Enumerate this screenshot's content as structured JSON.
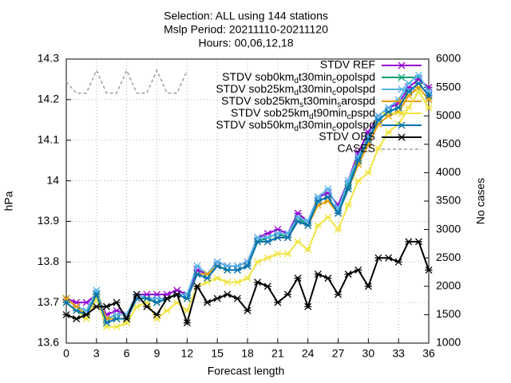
{
  "chart_data": {
    "type": "line",
    "title": [
      "Selection: ALL using    144 stations",
      "Mslp   Period: 20211110-20211120",
      "Hours: 00,06,12,18"
    ],
    "x_label": "Forecast length",
    "y_label": "hPa",
    "y2_label": "No cases",
    "x": [
      0,
      1,
      2,
      3,
      4,
      5,
      6,
      7,
      8,
      9,
      10,
      11,
      12,
      13,
      14,
      15,
      16,
      17,
      18,
      19,
      20,
      21,
      22,
      23,
      24,
      25,
      26,
      27,
      28,
      29,
      30,
      31,
      32,
      33,
      34,
      35,
      36
    ],
    "xlim": [
      0,
      36
    ],
    "xticks": [
      0,
      3,
      6,
      9,
      12,
      15,
      18,
      21,
      24,
      27,
      30,
      33,
      36
    ],
    "ylim": [
      13.6,
      14.3
    ],
    "yticks": [
      13.6,
      13.7,
      13.8,
      13.9,
      14,
      14.1,
      14.2,
      14.3
    ],
    "y2lim": [
      1000,
      6000
    ],
    "y2ticks": [
      1000,
      1500,
      2000,
      2500,
      3000,
      3500,
      4000,
      4500,
      5000,
      5500,
      6000
    ],
    "grid": true,
    "legend": "top-right",
    "series": [
      {
        "name": "STDV REF",
        "color": "#9400d3",
        "values": [
          13.71,
          13.7,
          13.7,
          13.72,
          13.67,
          13.68,
          13.67,
          13.72,
          13.72,
          13.72,
          13.72,
          13.73,
          13.72,
          13.78,
          13.77,
          13.8,
          13.79,
          13.79,
          13.8,
          13.86,
          13.87,
          13.88,
          13.87,
          13.92,
          13.9,
          13.96,
          13.97,
          13.94,
          14.0,
          14.07,
          14.12,
          14.16,
          14.18,
          14.19,
          14.23,
          14.25,
          14.23
        ]
      },
      {
        "name": "STDV sob0km_dt30min_copolspd",
        "color": "#009e73",
        "values": [
          13.7,
          13.68,
          13.67,
          13.72,
          13.66,
          13.66,
          13.66,
          13.71,
          13.71,
          13.7,
          13.71,
          13.72,
          13.71,
          13.77,
          13.77,
          13.79,
          13.78,
          13.78,
          13.79,
          13.85,
          13.86,
          13.87,
          13.86,
          13.91,
          13.89,
          13.95,
          13.96,
          13.92,
          13.99,
          14.05,
          14.1,
          14.15,
          14.17,
          14.18,
          14.22,
          14.24,
          14.21
        ]
      },
      {
        "name": "STDV sob25km_dt30min_copolspd",
        "color": "#56b4e9",
        "values": [
          13.71,
          13.69,
          13.68,
          13.73,
          13.66,
          13.67,
          13.67,
          13.72,
          13.71,
          13.71,
          13.71,
          13.72,
          13.72,
          13.79,
          13.77,
          13.8,
          13.79,
          13.79,
          13.8,
          13.86,
          13.86,
          13.87,
          13.87,
          13.91,
          13.9,
          13.96,
          13.98,
          13.93,
          14.0,
          14.06,
          14.11,
          14.16,
          14.18,
          14.2,
          14.24,
          14.26,
          14.22
        ]
      },
      {
        "name": "STDV sob25km_st30min_sarospd",
        "color": "#e69f00",
        "values": [
          13.71,
          13.69,
          13.67,
          13.72,
          13.66,
          13.66,
          13.66,
          13.71,
          13.71,
          13.7,
          13.71,
          13.72,
          13.71,
          13.77,
          13.77,
          13.79,
          13.78,
          13.78,
          13.79,
          13.85,
          13.85,
          13.86,
          13.86,
          13.9,
          13.89,
          13.94,
          13.95,
          13.92,
          13.98,
          14.04,
          14.09,
          14.14,
          14.16,
          14.17,
          14.21,
          14.23,
          14.2
        ]
      },
      {
        "name": "STDV sob25km_dt90min_cpspd",
        "color": "#f0e442",
        "values": [
          13.7,
          13.68,
          13.66,
          13.71,
          13.64,
          13.64,
          13.65,
          13.69,
          13.7,
          13.66,
          13.68,
          13.7,
          13.68,
          13.74,
          13.75,
          13.76,
          13.75,
          13.75,
          13.76,
          13.8,
          13.81,
          13.82,
          13.82,
          13.85,
          13.83,
          13.89,
          13.91,
          13.88,
          13.94,
          14.0,
          14.02,
          14.08,
          14.12,
          14.14,
          14.18,
          14.22,
          14.18
        ]
      },
      {
        "name": "STDV sob50km_dt30min_copolspd",
        "color": "#0072b2",
        "values": [
          13.7,
          13.68,
          13.67,
          13.72,
          13.65,
          13.66,
          13.66,
          13.71,
          13.71,
          13.7,
          13.71,
          13.72,
          13.71,
          13.77,
          13.76,
          13.79,
          13.78,
          13.78,
          13.79,
          13.85,
          13.85,
          13.86,
          13.86,
          13.9,
          13.89,
          13.95,
          13.96,
          13.92,
          13.98,
          14.05,
          14.1,
          14.15,
          14.17,
          14.18,
          14.22,
          14.24,
          14.21
        ]
      },
      {
        "name": "STDV OBS",
        "color": "#000000",
        "values": [
          13.67,
          13.66,
          13.67,
          13.69,
          13.69,
          13.7,
          13.66,
          13.72,
          13.69,
          13.67,
          13.71,
          13.72,
          13.65,
          13.74,
          13.7,
          13.71,
          13.72,
          13.71,
          13.68,
          13.75,
          13.74,
          13.7,
          13.72,
          13.76,
          13.69,
          13.77,
          13.76,
          13.72,
          13.77,
          13.78,
          13.74,
          13.81,
          13.81,
          13.8,
          13.85,
          13.85,
          13.78
        ]
      },
      {
        "name": "CASES",
        "color": "#a0a0a0",
        "axis": "y2",
        "dashed": true,
        "values": [
          5600,
          5400,
          5400,
          5800,
          5400,
          5400,
          5800,
          5400,
          5400,
          5800,
          5400,
          5400,
          5800,
          null,
          null,
          null,
          null,
          null,
          null,
          null,
          null,
          null,
          null,
          null,
          null,
          null,
          null,
          null,
          null,
          null,
          null,
          null,
          null,
          null,
          null,
          null,
          null
        ]
      }
    ]
  }
}
